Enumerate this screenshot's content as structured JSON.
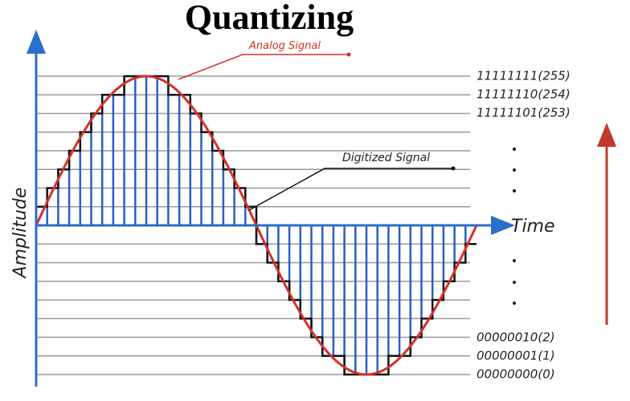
{
  "header": {
    "title": "Quantizing"
  },
  "labels": {
    "analog": "Analog Signal",
    "digitized": "Digitized Signal",
    "x_axis": "Time",
    "y_axis": "Amplitude"
  },
  "levels": {
    "top": [
      "11111111(255)",
      "11111110(254)",
      "11111101(253)"
    ],
    "bottom": [
      "00000010(2)",
      "00000001(1)",
      "00000000(0)"
    ]
  }
}
